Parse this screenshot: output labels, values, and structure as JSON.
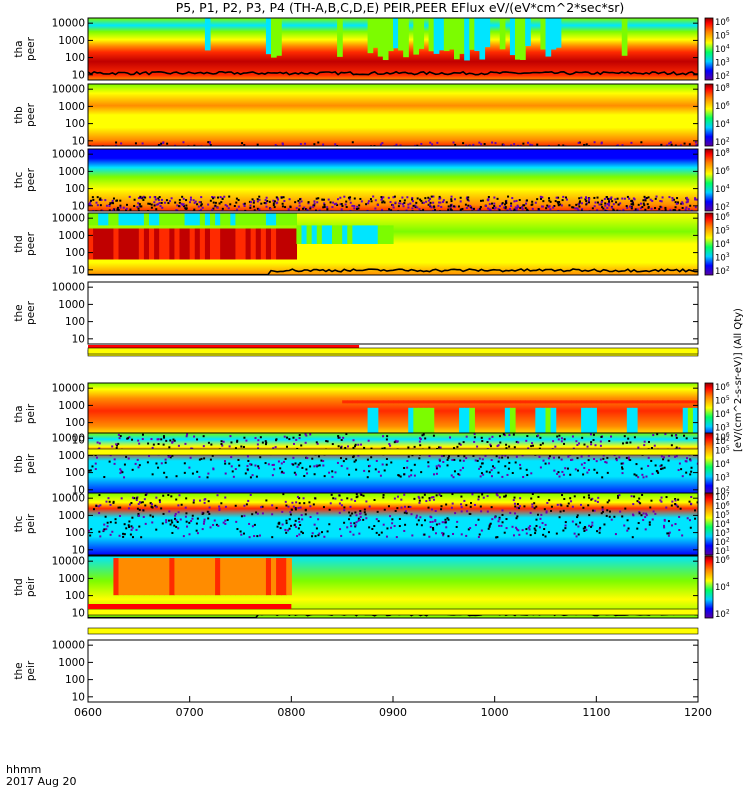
{
  "chart_data": {
    "type": "heatmap",
    "title": "P5, P1, P2, P3, P4 (TH-A,B,C,D,E) PEIR,PEER EFlux eV/(eV*cm^2*sec*sr)",
    "xlabel": "hhmm",
    "date_label": "2017 Aug 20",
    "x_ticks": [
      "0600",
      "0700",
      "0800",
      "0900",
      "1000",
      "1100",
      "1200"
    ],
    "x_range": [
      "0600",
      "1200"
    ],
    "y_scale": "log",
    "y_range": [
      5,
      20000
    ],
    "y_ticks": [
      "10",
      "100",
      "1000",
      "10000"
    ],
    "colorbar_unit_label": "[eV/(cm^2-s-sr-eV)] (All Qty)",
    "panels": [
      {
        "label_top": "tha",
        "label_bottom": "peer",
        "has_data": true,
        "style": "peer_a",
        "colorbar_ticks": [
          "10^2",
          "10^3",
          "10^4",
          "10^5",
          "10^6"
        ]
      },
      {
        "label_top": "thb",
        "label_bottom": "peer",
        "has_data": true,
        "style": "peer_b",
        "colorbar_ticks": [
          "10^2",
          "10^4",
          "10^6",
          "10^8"
        ]
      },
      {
        "label_top": "thc",
        "label_bottom": "peer",
        "has_data": true,
        "style": "peer_c",
        "colorbar_ticks": [
          "10^2",
          "10^4",
          "10^6",
          "10^8"
        ]
      },
      {
        "label_top": "thd",
        "label_bottom": "peer",
        "has_data": true,
        "style": "peer_d",
        "colorbar_ticks": [
          "10^2",
          "10^3",
          "10^4",
          "10^5",
          "10^6"
        ]
      },
      {
        "label_top": "the",
        "label_bottom": "peer",
        "has_data": false,
        "style": "empty",
        "colorbar_ticks": []
      },
      {
        "label_top": "tha",
        "label_bottom": "peir",
        "has_data": true,
        "style": "peir_a",
        "colorbar_ticks": [
          "10^2",
          "10^3",
          "10^4",
          "10^5",
          "10^6"
        ]
      },
      {
        "label_top": "thb",
        "label_bottom": "peir",
        "has_data": true,
        "style": "peir_b",
        "colorbar_ticks": [
          "10^2",
          "10^3",
          "10^4",
          "10^5",
          "10^6"
        ]
      },
      {
        "label_top": "thc",
        "label_bottom": "peir",
        "has_data": true,
        "style": "peir_c",
        "colorbar_ticks": [
          "10^1",
          "10^2",
          "10^3",
          "10^4",
          "10^5",
          "10^6",
          "10^7"
        ]
      },
      {
        "label_top": "thd",
        "label_bottom": "peir",
        "has_data": true,
        "style": "peir_d",
        "colorbar_ticks": [
          "10^2",
          "10^4",
          "10^6"
        ]
      },
      {
        "label_top": "the",
        "label_bottom": "peir",
        "has_data": false,
        "style": "empty",
        "colorbar_ticks": []
      }
    ],
    "mode_bars": [
      {
        "after_panel": 4,
        "red_end": "0840"
      },
      {
        "after_panel": 5,
        "red_end": null
      },
      {
        "after_panel": 6,
        "red_end": null
      },
      {
        "after_panel": 7,
        "red_end": "0800"
      },
      {
        "after_panel": 8,
        "red_end": null
      }
    ],
    "colors": {
      "dark_red": "#8b0000",
      "red": "#ff2a00",
      "orange": "#ff8c00",
      "yellow": "#ffff00",
      "green": "#7cfc00",
      "cyan": "#00e5ff",
      "blue": "#0000ff",
      "purple": "#6a00b0",
      "black": "#000000",
      "mode_red": "#ff0000",
      "mode_yellow": "#ffff00"
    }
  }
}
